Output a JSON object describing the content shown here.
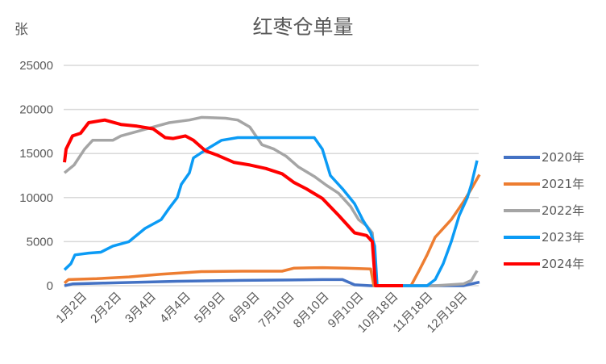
{
  "chart_data": {
    "type": "line",
    "title": "红枣仓单量",
    "ylabel": "张",
    "xlabel": "",
    "ylim": [
      0,
      25000
    ],
    "yticks": [
      0,
      5000,
      10000,
      15000,
      20000,
      25000
    ],
    "ytick_labels": [
      "0",
      "5000",
      "10000",
      "15000",
      "20000",
      "25000"
    ],
    "grid": true,
    "legend_position": "right",
    "categories": [
      "1月2日",
      "2月2日",
      "3月4日",
      "4月4日",
      "5月9日",
      "6月9日",
      "7月10日",
      "8月10日",
      "9月10日",
      "10月18日",
      "11月18日",
      "12月19日"
    ],
    "series": [
      {
        "name": "2020年",
        "color": "#4472C4",
        "points": [
          [
            80,
            0
          ],
          [
            90,
            200
          ],
          [
            130,
            300
          ],
          [
            220,
            500
          ],
          [
            300,
            600
          ],
          [
            360,
            650
          ],
          [
            400,
            700
          ],
          [
            425,
            700
          ],
          [
            440,
            100
          ],
          [
            460,
            0
          ],
          [
            575,
            0
          ],
          [
            595,
            400
          ]
        ]
      },
      {
        "name": "2021年",
        "color": "#ED7D31",
        "points": [
          [
            80,
            300
          ],
          [
            85,
            700
          ],
          [
            120,
            800
          ],
          [
            160,
            1000
          ],
          [
            200,
            1300
          ],
          [
            250,
            1600
          ],
          [
            300,
            1650
          ],
          [
            350,
            1650
          ],
          [
            365,
            2000
          ],
          [
            400,
            2050
          ],
          [
            430,
            2000
          ],
          [
            460,
            1900
          ],
          [
            464,
            0
          ],
          [
            510,
            0
          ],
          [
            520,
            1700
          ],
          [
            530,
            3500
          ],
          [
            540,
            5500
          ],
          [
            560,
            7500
          ],
          [
            575,
            9500
          ],
          [
            585,
            11000
          ],
          [
            595,
            12600
          ]
        ]
      },
      {
        "name": "2022年",
        "color": "#A5A5A5",
        "points": [
          [
            80,
            12800
          ],
          [
            92,
            13700
          ],
          [
            105,
            15500
          ],
          [
            115,
            16500
          ],
          [
            140,
            16500
          ],
          [
            150,
            17000
          ],
          [
            170,
            17500
          ],
          [
            190,
            18000
          ],
          [
            210,
            18500
          ],
          [
            235,
            18800
          ],
          [
            250,
            19100
          ],
          [
            280,
            19000
          ],
          [
            295,
            18800
          ],
          [
            310,
            18000
          ],
          [
            325,
            16000
          ],
          [
            340,
            15500
          ],
          [
            355,
            14700
          ],
          [
            370,
            13500
          ],
          [
            390,
            12400
          ],
          [
            405,
            11400
          ],
          [
            420,
            10500
          ],
          [
            435,
            9000
          ],
          [
            445,
            7500
          ],
          [
            455,
            6800
          ],
          [
            462,
            6000
          ],
          [
            468,
            0
          ],
          [
            540,
            0
          ],
          [
            575,
            200
          ],
          [
            585,
            600
          ],
          [
            592,
            1700
          ]
        ]
      },
      {
        "name": "2023年",
        "color": "#0B9BF5",
        "points": [
          [
            80,
            1800
          ],
          [
            88,
            2500
          ],
          [
            93,
            3500
          ],
          [
            110,
            3700
          ],
          [
            125,
            3800
          ],
          [
            140,
            4500
          ],
          [
            160,
            5000
          ],
          [
            180,
            6500
          ],
          [
            200,
            7500
          ],
          [
            210,
            8800
          ],
          [
            220,
            10000
          ],
          [
            225,
            11500
          ],
          [
            235,
            12800
          ],
          [
            240,
            14500
          ],
          [
            255,
            15400
          ],
          [
            275,
            16500
          ],
          [
            295,
            16800
          ],
          [
            330,
            16800
          ],
          [
            360,
            16800
          ],
          [
            390,
            16800
          ],
          [
            400,
            15500
          ],
          [
            410,
            12500
          ],
          [
            425,
            11000
          ],
          [
            440,
            9300
          ],
          [
            450,
            7500
          ],
          [
            460,
            6000
          ],
          [
            465,
            4500
          ],
          [
            468,
            0
          ],
          [
            530,
            0
          ],
          [
            540,
            700
          ],
          [
            550,
            2500
          ],
          [
            560,
            5000
          ],
          [
            570,
            8000
          ],
          [
            580,
            10000
          ],
          [
            585,
            11500
          ],
          [
            592,
            14200
          ]
        ]
      },
      {
        "name": "2024年",
        "color": "#FF0000",
        "points": [
          [
            80,
            14000
          ],
          [
            82,
            15500
          ],
          [
            90,
            17000
          ],
          [
            100,
            17300
          ],
          [
            110,
            18500
          ],
          [
            130,
            18800
          ],
          [
            150,
            18300
          ],
          [
            170,
            18100
          ],
          [
            190,
            17800
          ],
          [
            205,
            16800
          ],
          [
            215,
            16700
          ],
          [
            230,
            17000
          ],
          [
            240,
            16500
          ],
          [
            255,
            15300
          ],
          [
            270,
            14800
          ],
          [
            290,
            14000
          ],
          [
            310,
            13700
          ],
          [
            330,
            13300
          ],
          [
            350,
            12700
          ],
          [
            365,
            11700
          ],
          [
            380,
            11000
          ],
          [
            400,
            9900
          ],
          [
            420,
            8000
          ],
          [
            440,
            6000
          ],
          [
            455,
            5700
          ],
          [
            462,
            5000
          ],
          [
            466,
            0
          ],
          [
            500,
            0
          ]
        ]
      }
    ]
  }
}
